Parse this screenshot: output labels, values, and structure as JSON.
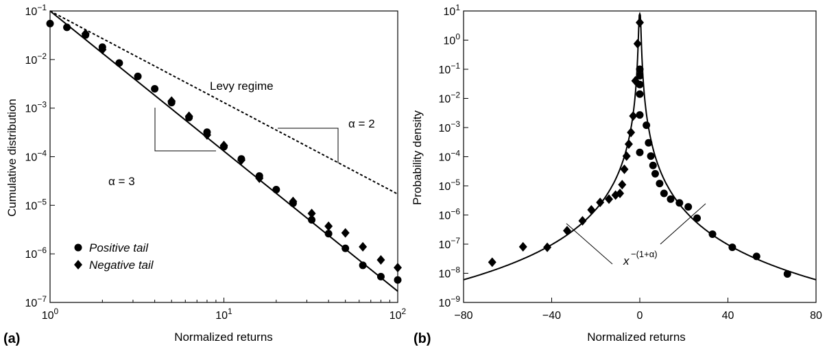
{
  "chart_data": [
    {
      "panel_label": "(a)",
      "type": "scatter",
      "xlabel": "Normalized returns",
      "ylabel": "Cumulative distribution",
      "xscale": "log",
      "yscale": "log",
      "xlim": [
        1,
        100
      ],
      "ylim": [
        1e-07,
        0.1
      ],
      "x_ticks": [
        {
          "value": 1,
          "base": "10",
          "exp": "0"
        },
        {
          "value": 10,
          "base": "10",
          "exp": "1"
        },
        {
          "value": 100,
          "base": "10",
          "exp": "2"
        }
      ],
      "y_ticks": [
        {
          "value": 1e-07,
          "base": "10",
          "exp": "−7"
        },
        {
          "value": 1e-06,
          "base": "10",
          "exp": "−6"
        },
        {
          "value": 1e-05,
          "base": "10",
          "exp": "−5"
        },
        {
          "value": 0.0001,
          "base": "10",
          "exp": "−4"
        },
        {
          "value": 0.001,
          "base": "10",
          "exp": "−3"
        },
        {
          "value": 0.01,
          "base": "10",
          "exp": "−2"
        },
        {
          "value": 0.1,
          "base": "10",
          "exp": "−1"
        }
      ],
      "legend": {
        "position": "bottom-left",
        "entries": [
          {
            "marker": "circle",
            "label": "Positive tail"
          },
          {
            "marker": "diamond",
            "label": "Negative tail"
          }
        ]
      },
      "series": [
        {
          "name": "Positive tail",
          "marker": "circle",
          "points": [
            [
              1.0,
              0.055
            ],
            [
              1.25,
              0.046
            ],
            [
              1.6,
              0.032
            ],
            [
              2.0,
              0.018
            ],
            [
              2.5,
              0.0085
            ],
            [
              3.2,
              0.0045
            ],
            [
              4.0,
              0.0025
            ],
            [
              5.0,
              0.0013
            ],
            [
              6.3,
              0.00064
            ],
            [
              8.0,
              0.00032
            ],
            [
              10.0,
              0.00016
            ],
            [
              12.6,
              9e-05
            ],
            [
              16.0,
              4e-05
            ],
            [
              20.0,
              2.1e-05
            ],
            [
              25.0,
              1.1e-05
            ],
            [
              32.0,
              5e-06
            ],
            [
              40.0,
              2.6e-06
            ],
            [
              50.0,
              1.3e-06
            ],
            [
              63.0,
              5.8e-07
            ],
            [
              80.0,
              3.4e-07
            ],
            [
              100.0,
              2.9e-07
            ]
          ]
        },
        {
          "name": "Negative tail",
          "marker": "diamond",
          "points": [
            [
              1.6,
              0.034
            ],
            [
              2.0,
              0.016
            ],
            [
              5.0,
              0.0014
            ],
            [
              6.3,
              0.00068
            ],
            [
              8.0,
              0.00028
            ],
            [
              10.0,
              0.00017
            ],
            [
              12.6,
              8.5e-05
            ],
            [
              16.0,
              3.6e-05
            ],
            [
              25.0,
              1.2e-05
            ],
            [
              32.0,
              6.8e-06
            ],
            [
              40.0,
              3.7e-06
            ],
            [
              50.0,
              2.7e-06
            ],
            [
              63.0,
              1.4e-06
            ],
            [
              80.0,
              7.5e-07
            ],
            [
              100.0,
              5.2e-07
            ]
          ]
        }
      ],
      "lines": [
        {
          "style": "solid",
          "points": [
            [
              1,
              0.1
            ],
            [
              100,
              1.7e-07
            ]
          ]
        },
        {
          "style": "dashed",
          "points": [
            [
              1,
              0.1
            ],
            [
              100,
              1.7e-05
            ]
          ]
        }
      ],
      "annotations": [
        {
          "text": "Levy regime"
        },
        {
          "text": "α = 2"
        },
        {
          "text": "α = 3"
        }
      ]
    },
    {
      "panel_label": "(b)",
      "type": "scatter",
      "xlabel": "Normalized returns",
      "ylabel": "Probability density",
      "xscale": "linear",
      "yscale": "log",
      "xlim": [
        -80,
        80
      ],
      "ylim": [
        1e-09,
        10
      ],
      "x_ticks": [
        {
          "value": -80,
          "label": "−80"
        },
        {
          "value": -40,
          "label": "−40"
        },
        {
          "value": 0,
          "label": "0"
        },
        {
          "value": 40,
          "label": "40"
        },
        {
          "value": 80,
          "label": "80"
        }
      ],
      "y_ticks": [
        {
          "value": 1e-09,
          "base": "10",
          "exp": "−9"
        },
        {
          "value": 1e-08,
          "base": "10",
          "exp": "−8"
        },
        {
          "value": 1e-07,
          "base": "10",
          "exp": "−7"
        },
        {
          "value": 1e-06,
          "base": "10",
          "exp": "−6"
        },
        {
          "value": 1e-05,
          "base": "10",
          "exp": "−5"
        },
        {
          "value": 0.0001,
          "base": "10",
          "exp": "−4"
        },
        {
          "value": 0.001,
          "base": "10",
          "exp": "−3"
        },
        {
          "value": 0.01,
          "base": "10",
          "exp": "−2"
        },
        {
          "value": 0.1,
          "base": "10",
          "exp": "−1"
        },
        {
          "value": 1,
          "base": "10",
          "exp": "0"
        },
        {
          "value": 10,
          "base": "10",
          "exp": "1"
        }
      ],
      "series": [
        {
          "name": "Positive tail",
          "marker": "circle",
          "points": [
            [
              0,
              0.00014
            ],
            [
              0,
              0.0027
            ],
            [
              0,
              0.014
            ],
            [
              0,
              0.03
            ],
            [
              0,
              0.06
            ],
            [
              0,
              0.1
            ],
            [
              3,
              0.0012
            ],
            [
              4,
              0.0003
            ],
            [
              5,
              0.000105
            ],
            [
              6,
              5e-05
            ],
            [
              7,
              2.6e-05
            ],
            [
              9,
              1.2e-05
            ],
            [
              11,
              5.5e-06
            ],
            [
              14,
              3.5e-06
            ],
            [
              18,
              2.6e-06
            ],
            [
              22,
              1.9e-06
            ],
            [
              26,
              7.8e-07
            ],
            [
              33,
              2.2e-07
            ],
            [
              42,
              7.8e-08
            ],
            [
              53,
              3.8e-08
            ],
            [
              67,
              9.5e-09
            ]
          ]
        },
        {
          "name": "Negative tail",
          "marker": "diamond",
          "points": [
            [
              0,
              4.0
            ],
            [
              -1,
              0.75
            ],
            [
              -2,
              0.04
            ],
            [
              -3,
              0.0025
            ],
            [
              -4,
              0.00068
            ],
            [
              -5,
              0.00027
            ],
            [
              -6,
              0.000105
            ],
            [
              -7,
              3.7e-05
            ],
            [
              -8,
              1.1e-05
            ],
            [
              -9,
              5.5e-06
            ],
            [
              -11,
              4.8e-06
            ],
            [
              -14,
              3.5e-06
            ],
            [
              -18,
              2.7e-06
            ],
            [
              -22,
              1.5e-06
            ],
            [
              -26,
              6.3e-07
            ],
            [
              -33,
              2.9e-07
            ],
            [
              -42,
              7.8e-08
            ],
            [
              -53,
              8.1e-08
            ],
            [
              -67,
              2.4e-08
            ]
          ]
        }
      ],
      "fit_curve": {
        "style": "solid",
        "peak": [
          0,
          8
        ],
        "tail_exponent": 4,
        "value_at_80": 6e-09
      },
      "annotations": [
        {
          "text": "x",
          "superscript": "−(1+α)"
        }
      ]
    }
  ]
}
